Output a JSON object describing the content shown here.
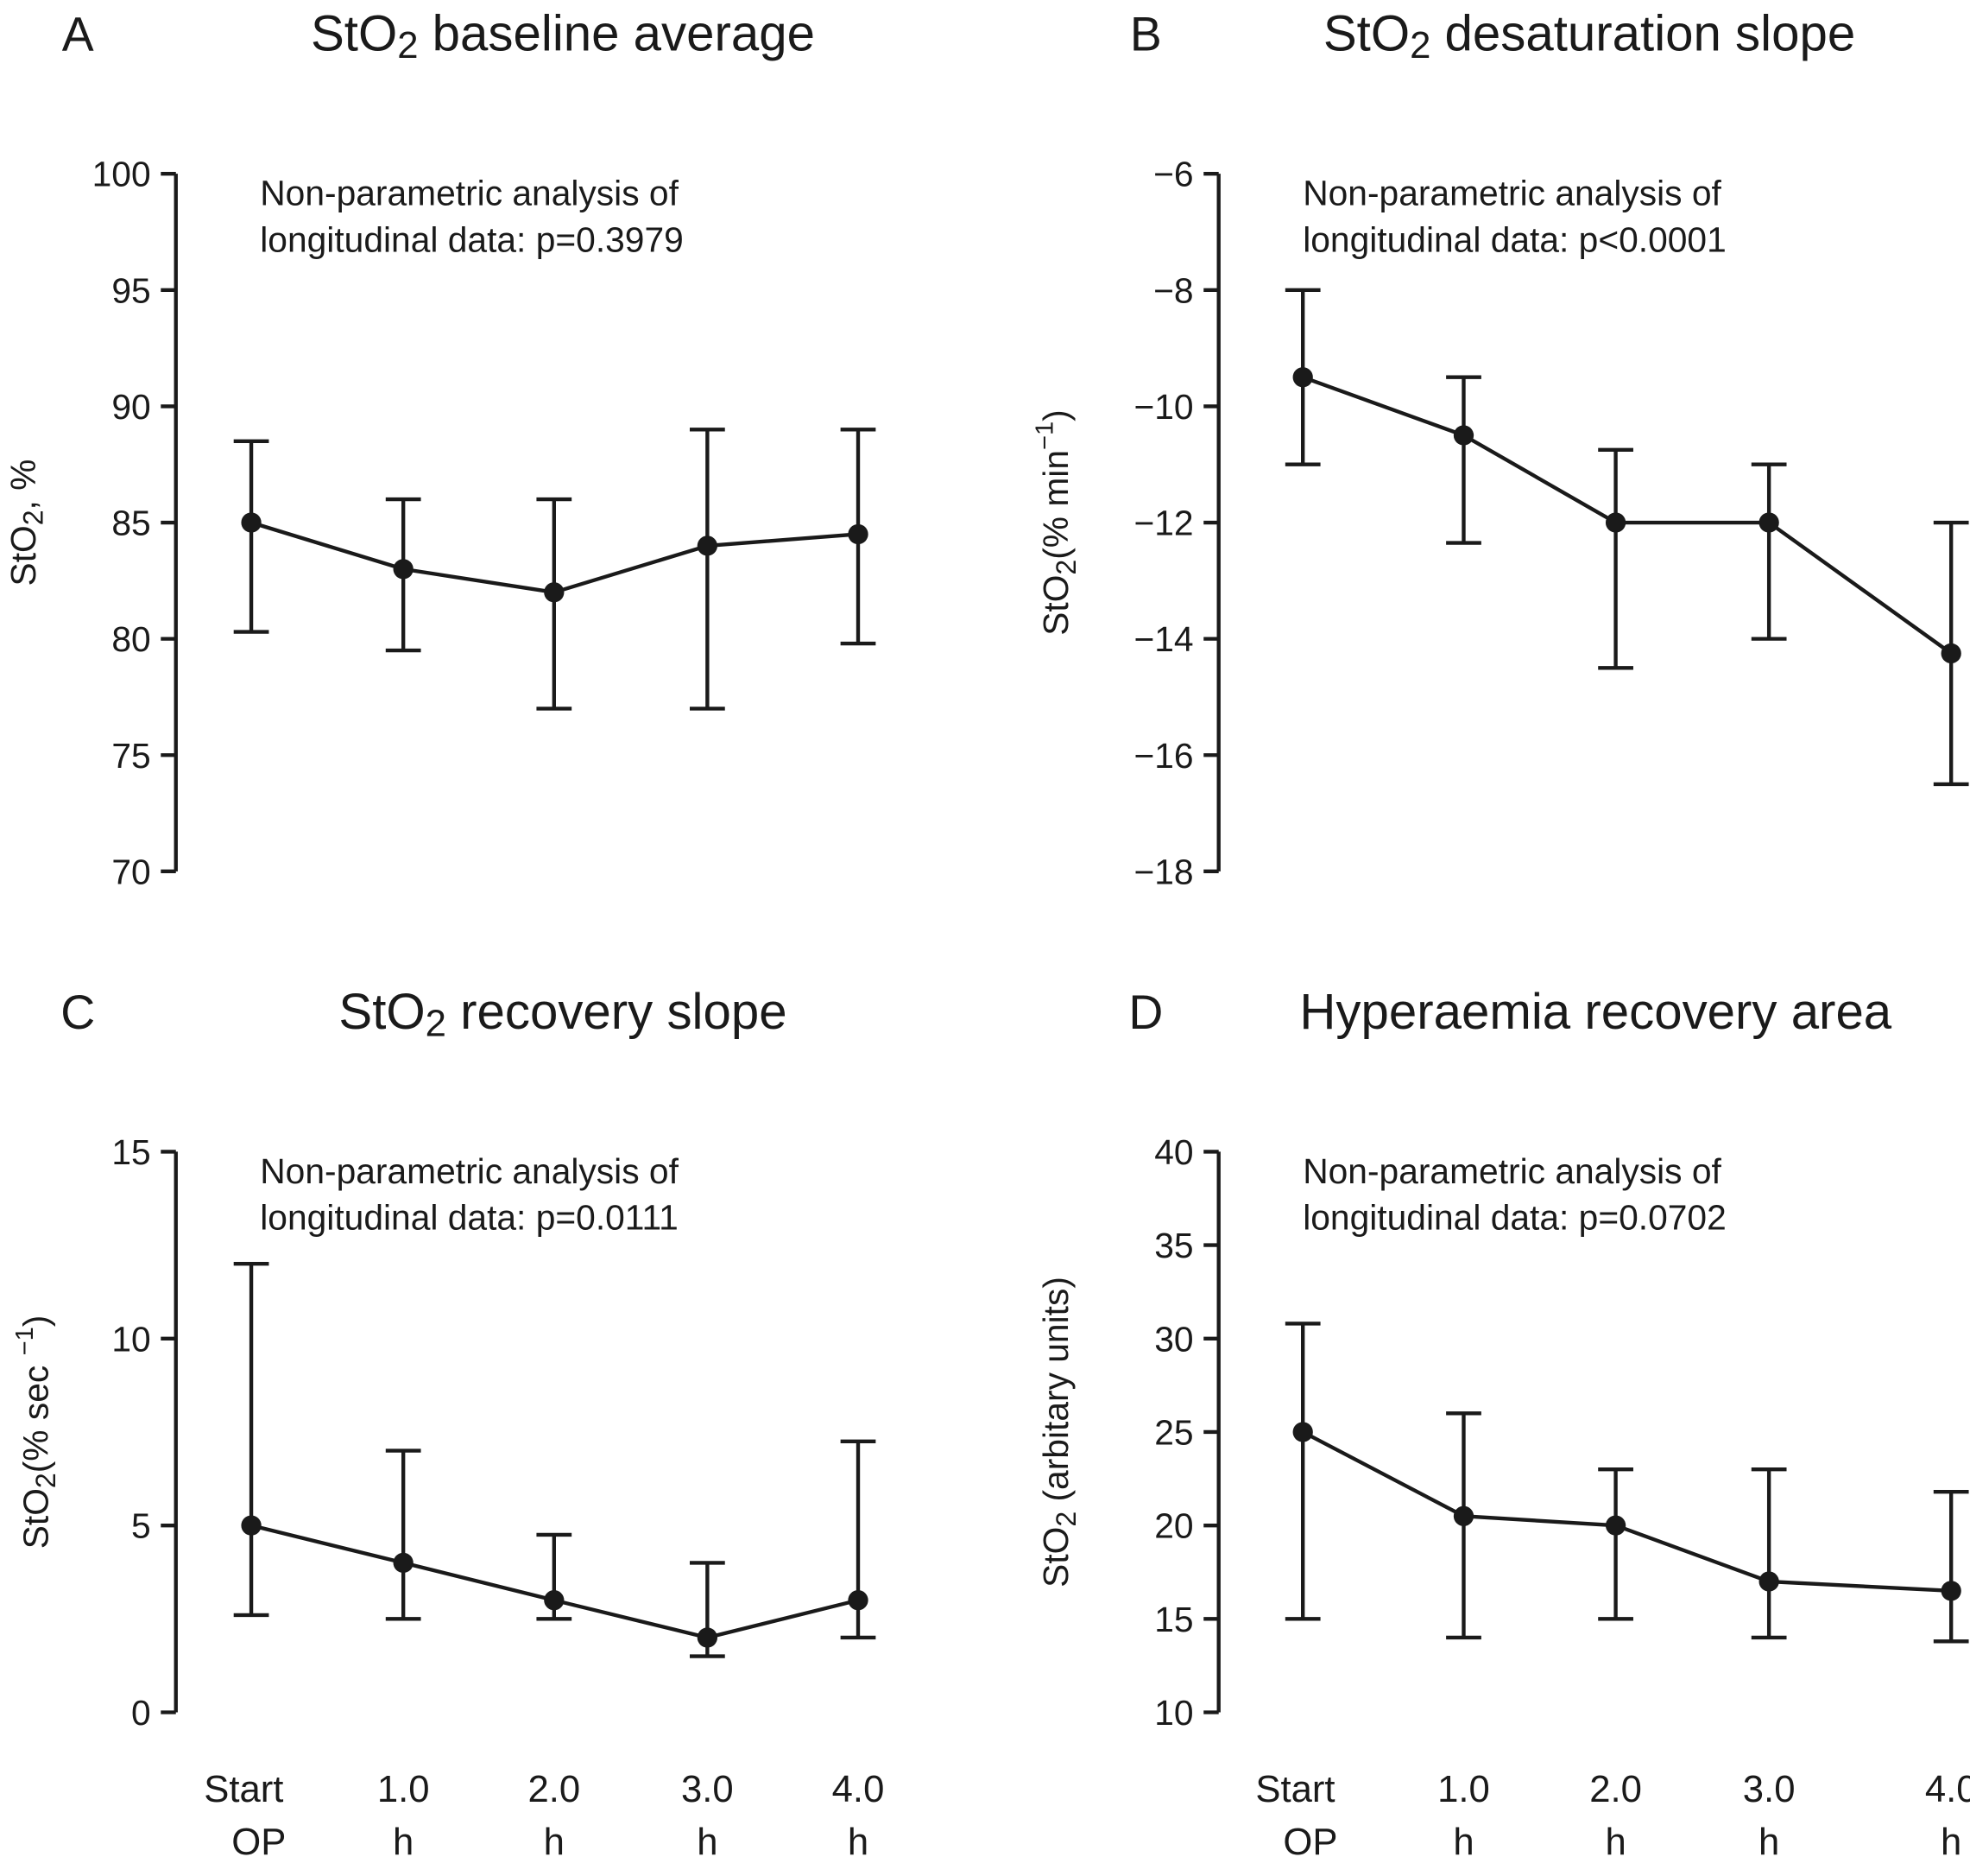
{
  "chart_data": [
    {
      "type": "line",
      "panel": "A",
      "title": {
        "pre": "StO",
        "sub": "2",
        "post": " baseline average"
      },
      "ylabel": {
        "pre": "StO",
        "sub": "2",
        "post": ", %",
        "sup": ""
      },
      "annotation": [
        "Non-parametric analysis of",
        "longitudinal data: p=0.3979"
      ],
      "ylim": [
        70,
        100
      ],
      "yticks": [
        70,
        75,
        80,
        85,
        90,
        95,
        100
      ],
      "categories": [
        "Start OP",
        "1.0 h",
        "2.0 h",
        "3.0 h",
        "4.0 h"
      ],
      "values": [
        85,
        83,
        82,
        84,
        84.5
      ],
      "err_high": [
        88.5,
        86,
        86,
        89,
        89
      ],
      "err_low": [
        80.3,
        79.5,
        77,
        77,
        79.8
      ],
      "show_xlabels": false
    },
    {
      "type": "line",
      "panel": "B",
      "title": {
        "pre": "StO",
        "sub": "2",
        "post": " desaturation slope"
      },
      "ylabel": {
        "pre": "StO",
        "sub": "2",
        "post": "(% min",
        "sup": "−1",
        "end": ")"
      },
      "annotation": [
        "Non-parametric analysis of",
        "longitudinal data: p<0.0001"
      ],
      "ylim": [
        -18,
        -6
      ],
      "yticks": [
        -18,
        -16,
        -14,
        -12,
        -10,
        -8,
        -6
      ],
      "categories": [
        "Start OP",
        "1.0 h",
        "2.0 h",
        "3.0 h",
        "4.0 h"
      ],
      "values": [
        -9.5,
        -10.5,
        -12,
        -12,
        -14.25
      ],
      "err_high": [
        -8,
        -9.5,
        -10.75,
        -11,
        -12
      ],
      "err_low": [
        -11,
        -12.35,
        -14.5,
        -14,
        -16.5
      ],
      "show_xlabels": false
    },
    {
      "type": "line",
      "panel": "C",
      "title": {
        "pre": "StO",
        "sub": "2",
        "post": " recovery slope"
      },
      "ylabel": {
        "pre": "StO",
        "sub": "2",
        "post": "(% sec ",
        "sup": "−1",
        "end": ")"
      },
      "annotation": [
        "Non-parametric analysis of",
        "longitudinal data: p=0.0111"
      ],
      "ylim": [
        0,
        15
      ],
      "yticks": [
        0,
        5,
        10,
        15
      ],
      "categories": [
        "Start OP",
        "1.0 h",
        "2.0 h",
        "3.0 h",
        "4.0 h"
      ],
      "values": [
        5,
        4,
        3,
        2,
        3
      ],
      "err_high": [
        12,
        7,
        4.75,
        4,
        7.25
      ],
      "err_low": [
        2.6,
        2.5,
        2.5,
        1.5,
        2
      ],
      "show_xlabels": true
    },
    {
      "type": "line",
      "panel": "D",
      "title": {
        "pre": "Hyperaemia recovery area",
        "sub": "",
        "post": ""
      },
      "ylabel": {
        "pre": "StO",
        "sub": "2",
        "post": " (arbitary units)",
        "sup": ""
      },
      "annotation": [
        "Non-parametric analysis of",
        "longitudinal data: p=0.0702"
      ],
      "ylim": [
        10,
        40
      ],
      "yticks": [
        10,
        15,
        20,
        25,
        30,
        35,
        40
      ],
      "categories": [
        "Start OP",
        "1.0 h",
        "2.0 h",
        "3.0 h",
        "4.0 h"
      ],
      "values": [
        25,
        20.5,
        20,
        17,
        16.5
      ],
      "err_high": [
        30.8,
        26,
        23,
        23,
        21.8
      ],
      "err_low": [
        15,
        14,
        15,
        14,
        13.8
      ],
      "show_xlabels": true
    }
  ]
}
